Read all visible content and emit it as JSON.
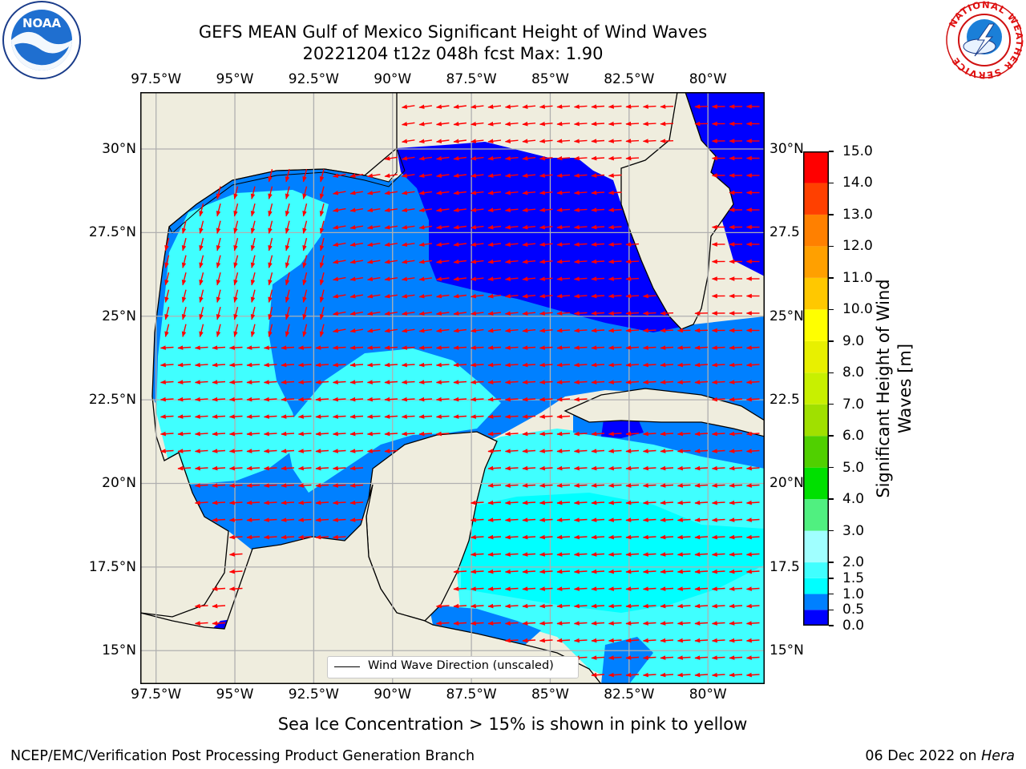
{
  "title": {
    "line1": "GEFS MEAN Gulf of Mexico Significant Height of Wind Waves",
    "line2": "20221204 t12z 048h fcst   Max: 1.90"
  },
  "map": {
    "lon_labels": [
      "97.5°W",
      "95°W",
      "92.5°W",
      "90°W",
      "87.5°W",
      "85°W",
      "82.5°W",
      "80°W"
    ],
    "lon_values": [
      -97.5,
      -95,
      -92.5,
      -90,
      -87.5,
      -85,
      -82.5,
      -80
    ],
    "lat_labels_left": [
      "30°N",
      "27.5°N",
      "25°N",
      "22.5°N",
      "20°N",
      "17.5°N",
      "15°N"
    ],
    "lat_labels_right": [
      "30°N",
      "27.5",
      "25°N",
      "22.5",
      "20°N",
      "17.5",
      "15°N"
    ],
    "lat_values": [
      30,
      27.5,
      25,
      22.5,
      20,
      17.5,
      15
    ],
    "extent": {
      "lon_min": -98,
      "lon_max": -78.2,
      "lat_min": 14,
      "lat_max": 31.7
    },
    "legend_label": "Wind Wave Direction (unscaled)"
  },
  "colorbar": {
    "label": "Significant Height of Wind Waves [m]",
    "levels": [
      "0.0",
      "0.5",
      "1.0",
      "1.5",
      "2.0",
      "3.0",
      "4.0",
      "5.0",
      "6.0",
      "7.0",
      "8.0",
      "9.0",
      "10.0",
      "11.0",
      "12.0",
      "13.0",
      "14.0",
      "15.0"
    ],
    "colors": [
      "#0000ff",
      "#0080ff",
      "#00ffff",
      "#40ffff",
      "#a0ffff",
      "#50f080",
      "#00e000",
      "#50d000",
      "#a0e000",
      "#c8f000",
      "#e8f000",
      "#ffff00",
      "#ffc800",
      "#ffa000",
      "#ff8000",
      "#ff4000",
      "#ff0000"
    ]
  },
  "colors": {
    "land": "#efedde",
    "arrow": "#ff0000",
    "grid": "#b0b0b0"
  },
  "sea_ice_note": "Sea Ice Concentration > 15% is shown in pink to yellow",
  "footer": {
    "left": "NCEP/EMC/Verification Post Processing Product Generation Branch",
    "right_date": "06 Dec 2022 on ",
    "right_host": "Hera"
  },
  "logos": {
    "noaa": "NOAA",
    "nws": "NATIONAL WEATHER SERVICE"
  }
}
